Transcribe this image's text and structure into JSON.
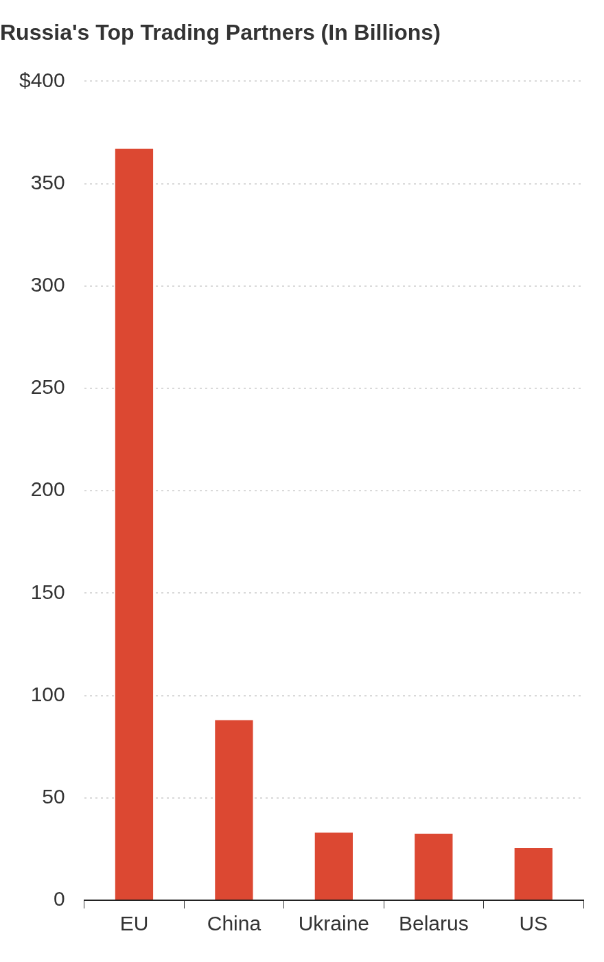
{
  "chart_data": {
    "type": "bar",
    "title": "Russia's Top Trading Partners (In Billions)",
    "categories": [
      "EU",
      "China",
      "Ukraine",
      "Belarus",
      "US"
    ],
    "values": [
      367,
      88,
      33,
      32.5,
      25.5
    ],
    "color": "#dc4832",
    "ylim": [
      0,
      400
    ],
    "yticks": [
      0,
      50,
      100,
      150,
      200,
      250,
      300,
      350,
      {
        "value": 400,
        "label": "$400"
      }
    ],
    "grid": true
  }
}
